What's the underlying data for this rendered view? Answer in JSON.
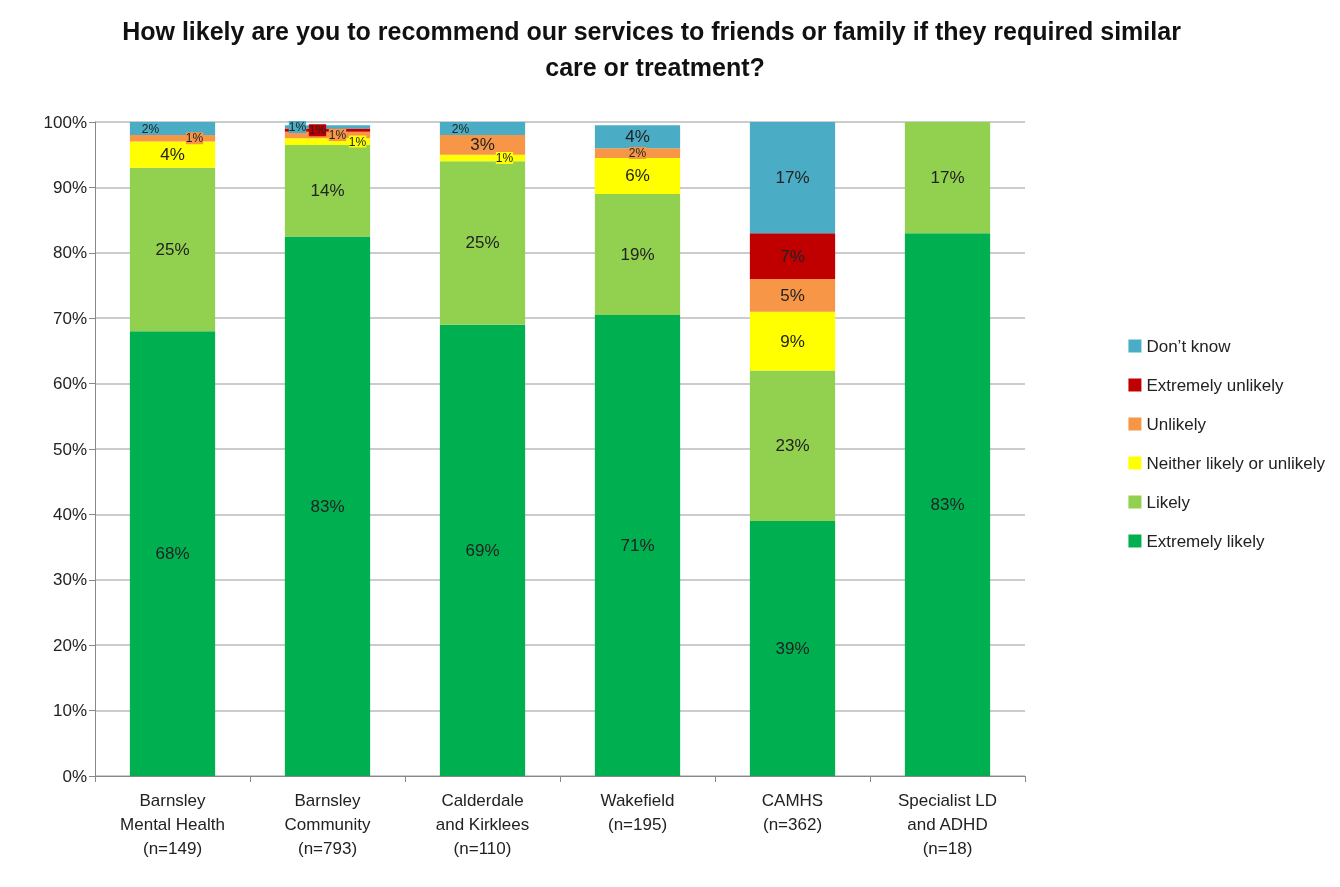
{
  "chart_data": {
    "type": "bar",
    "stacked": true,
    "title": "How likely are you to recommend our services to friends or family if they required similar care or treatment?",
    "categories": [
      "Barnsley\nMental Health\n(n=149)",
      "Barnsley\nCommunity\n(n=793)",
      "Calderdale\nand Kirklees\n(n=110)",
      "Wakefield\n(n=195)",
      "CAMHS\n(n=362)",
      "Specialist LD\nand ADHD\n(n=18)"
    ],
    "series": [
      {
        "name": "Extremely likely",
        "color": "#00b050",
        "values": [
          68,
          82.5,
          69,
          70.5,
          39,
          83
        ],
        "value_labels": [
          "68%",
          "83%",
          "69%",
          "71%",
          "39%",
          "83%"
        ]
      },
      {
        "name": "Likely",
        "color": "#92d050",
        "values": [
          25,
          14,
          25,
          18.5,
          23,
          17
        ],
        "value_labels": [
          "25%",
          "14%",
          "25%",
          "19%",
          "23%",
          "17%"
        ]
      },
      {
        "name": "Neither likely or unlikely",
        "color": "#ffff00",
        "values": [
          4,
          1,
          1,
          5.5,
          9,
          null
        ],
        "value_labels": [
          "4%",
          "1%",
          "1%",
          "6%",
          "9%",
          null
        ]
      },
      {
        "name": "Unlikely",
        "color": "#f79646",
        "values": [
          1,
          1,
          3,
          1.5,
          5,
          null
        ],
        "value_labels": [
          "1%",
          "1%",
          "3%",
          "2%",
          "5%",
          null
        ]
      },
      {
        "name": "Extremely unlikely",
        "color": "#c00000",
        "values": [
          null,
          0.5,
          null,
          null,
          7,
          null
        ],
        "value_labels": [
          null,
          "1%",
          null,
          null,
          "7%",
          null
        ]
      },
      {
        "name": "Don’t know",
        "color": "#4bacc6",
        "values": [
          2,
          0.5,
          2,
          3.5,
          17,
          null
        ],
        "value_labels": [
          "2%",
          "1%",
          "2%",
          "4%",
          "17%",
          null
        ]
      }
    ],
    "ylim": [
      0,
      100
    ],
    "yticks": [
      {
        "value": 0,
        "label": "0%"
      },
      {
        "value": 10,
        "label": "10%"
      },
      {
        "value": 20,
        "label": "20%"
      },
      {
        "value": 30,
        "label": "30%"
      },
      {
        "value": 40,
        "label": "40%"
      },
      {
        "value": 50,
        "label": "50%"
      },
      {
        "value": 60,
        "label": "60%"
      },
      {
        "value": 70,
        "label": "70%"
      },
      {
        "value": 80,
        "label": "80%"
      },
      {
        "value": 90,
        "label": "90%"
      },
      {
        "value": 100,
        "label": "100%"
      }
    ],
    "grid": "y",
    "legend": "right"
  }
}
